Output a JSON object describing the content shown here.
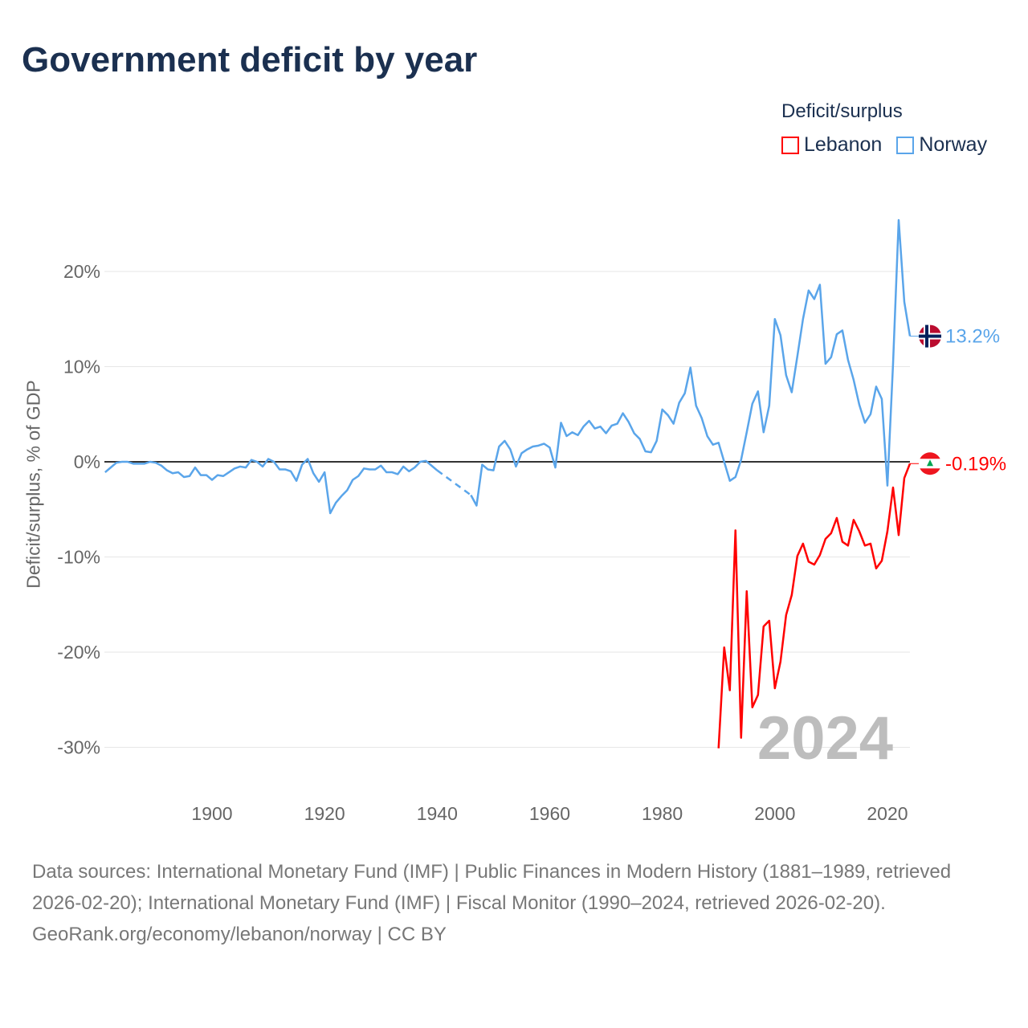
{
  "title": "Government deficit by year",
  "legend": {
    "title": "Deficit/surplus",
    "items": [
      {
        "name": "Lebanon",
        "color": "#ff0000"
      },
      {
        "name": "Norway",
        "color": "#5aa5ea"
      }
    ]
  },
  "chart_data": {
    "type": "line",
    "title": "Government deficit by year",
    "xlabel": "",
    "ylabel": "Deficit/surplus, % of GDP",
    "xlim": [
      1881,
      2024
    ],
    "ylim": [
      -30,
      25
    ],
    "x_ticks": [
      1900,
      1920,
      1940,
      1960,
      1980,
      2000,
      2020
    ],
    "y_ticks": [
      {
        "v": 20,
        "label": "20%"
      },
      {
        "v": 10,
        "label": "10%"
      },
      {
        "v": 0,
        "label": "0%"
      },
      {
        "v": -10,
        "label": "-10%"
      },
      {
        "v": -20,
        "label": "-20%"
      },
      {
        "v": -30,
        "label": "-30%"
      }
    ],
    "year_watermark": "2024",
    "series": [
      {
        "name": "Norway",
        "color": "#5aa5ea",
        "end_label": "13.2%",
        "start": 1881,
        "values": [
          -1.1,
          -0.6,
          -0.1,
          0,
          0,
          -0.2,
          -0.2,
          -0.2,
          0,
          -0.1,
          -0.4,
          -0.9,
          -1.2,
          -1.1,
          -1.6,
          -1.5,
          -0.6,
          -1.4,
          -1.4,
          -1.9,
          -1.4,
          -1.5,
          -1.1,
          -0.7,
          -0.5,
          -0.6,
          0.2,
          0,
          -0.5,
          0.3,
          0,
          -0.8,
          -0.8,
          -1.0,
          -2.0,
          -0.3,
          0.3,
          -1.2,
          -2.1,
          -1.1,
          -5.4,
          -4.3,
          -3.6,
          -3.0,
          -1.9,
          -1.5,
          -0.7,
          -0.8,
          -0.8,
          -0.4,
          -1.1,
          -1.1,
          -1.3,
          -0.5,
          -1.0,
          -0.6,
          0,
          0.1,
          -0.4,
          -0.9,
          null,
          null,
          null,
          null,
          null,
          -3.5,
          -4.6,
          -0.3,
          -0.8,
          -0.9,
          1.6,
          2.2,
          1.3,
          -0.5,
          0.9,
          1.3,
          1.6,
          1.7,
          1.9,
          1.5,
          -0.6,
          4.1,
          2.7,
          3.1,
          2.8,
          3.7,
          4.3,
          3.5,
          3.7,
          3.0,
          3.8,
          4.0,
          5.1,
          4.2,
          3.0,
          2.4,
          1.1,
          1.0,
          2.2,
          5.5,
          4.9,
          4.0,
          6.2,
          7.2,
          9.9,
          5.9,
          4.6,
          2.7,
          1.8,
          2.0,
          0,
          -2.0,
          -1.6,
          0.2,
          3.1,
          6.1,
          7.4,
          3.1,
          5.9,
          15.0,
          13.3,
          9.1,
          7.3,
          11.1,
          15.0,
          18.0,
          17.1,
          18.6,
          10.3,
          11.0,
          13.4,
          13.8,
          10.7,
          8.6,
          6.0,
          4.1,
          5.0,
          7.9,
          6.6,
          -2.5,
          10.3,
          25.4,
          16.8,
          13.2
        ]
      },
      {
        "name": "Lebanon",
        "color": "#ff0000",
        "end_label": "-0.19%",
        "start": 1990,
        "values": [
          -30.1,
          -19.5,
          -24,
          -7.2,
          -29,
          -13.6,
          -25.8,
          -24.5,
          -17.3,
          -16.7,
          -23.8,
          -21,
          -16.1,
          -14,
          -9.9,
          -8.6,
          -10.5,
          -10.8,
          -9.8,
          -8.1,
          -7.5,
          -5.9,
          -8.4,
          -8.8,
          -6.1,
          -7.3,
          -8.8,
          -8.6,
          -11.2,
          -10.4,
          -7.3,
          -2.7,
          -7.7,
          -1.7,
          -0.19
        ]
      }
    ]
  },
  "footer": {
    "sources": "Data sources: International Monetary Fund (IMF) | Public Finances in Modern History (1881–1989, retrieved 2026-02-20); International Monetary Fund (IMF) | Fiscal Monitor (1990–2024, retrieved 2026-02-20).",
    "attribution": "GeoRank.org/economy/lebanon/norway | CC BY"
  }
}
